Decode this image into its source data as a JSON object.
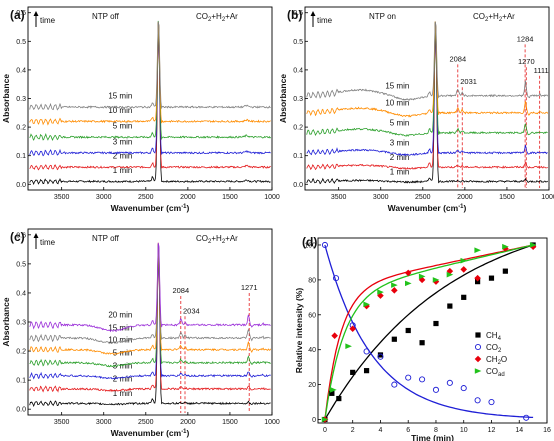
{
  "chart_data": [
    {
      "id": "a",
      "type": "line",
      "panel_label": "(a)",
      "condition": "NTP off",
      "gas": "CO2+H2+Ar",
      "time_arrow": "time",
      "xlabel": "Wavenumber (cm-1)",
      "ylabel": "Absorbance",
      "xlim": [
        3900,
        1000
      ],
      "ylim": [
        -0.02,
        0.62
      ],
      "xticks": [
        3500,
        3000,
        2500,
        2000,
        1500,
        1000
      ],
      "yticks": [
        0.0,
        0.1,
        0.2,
        0.3,
        0.4,
        0.5,
        0.6
      ],
      "series": [
        {
          "name": "1 min",
          "color": "#000000",
          "baseline": 0.01
        },
        {
          "name": "2 min",
          "color": "#e41a1c",
          "baseline": 0.06
        },
        {
          "name": "3 min",
          "color": "#1f1fd6",
          "baseline": 0.11
        },
        {
          "name": "5 min",
          "color": "#2ca02c",
          "baseline": 0.165
        },
        {
          "name": "10 min",
          "color": "#ff8c00",
          "baseline": 0.22
        },
        {
          "name": "15 min",
          "color": "#808080",
          "baseline": 0.27
        }
      ],
      "peak_labels": []
    },
    {
      "id": "b",
      "type": "line",
      "panel_label": "(b)",
      "condition": "NTP on",
      "gas": "CO2+H2+Ar",
      "time_arrow": "time",
      "xlabel": "Wavenumber (cm-1)",
      "ylabel": "Absorbance",
      "xlim": [
        3900,
        1000
      ],
      "ylim": [
        -0.02,
        0.62
      ],
      "xticks": [
        3500,
        3000,
        2500,
        2000,
        1500,
        1000
      ],
      "yticks": [
        0.0,
        0.1,
        0.2,
        0.3,
        0.4,
        0.5,
        0.6
      ],
      "series": [
        {
          "name": "1 min",
          "color": "#000000",
          "baseline": 0.01
        },
        {
          "name": "2 min",
          "color": "#e41a1c",
          "baseline": 0.06
        },
        {
          "name": "3 min",
          "color": "#1f1fd6",
          "baseline": 0.11
        },
        {
          "name": "5 min",
          "color": "#2ca02c",
          "baseline": 0.18
        },
        {
          "name": "10 min",
          "color": "#ff8c00",
          "baseline": 0.25
        },
        {
          "name": "15 min",
          "color": "#808080",
          "baseline": 0.31
        }
      ],
      "peak_labels": [
        "2084",
        "2031",
        "1284",
        "1270",
        "1111"
      ]
    },
    {
      "id": "c",
      "type": "line",
      "panel_label": "(c)",
      "condition": "NTP off",
      "gas": "CO2+H2+Ar",
      "time_arrow": "time",
      "xlabel": "Wavenumber (cm-1)",
      "ylabel": "Absorbance",
      "xlim": [
        3900,
        1000
      ],
      "ylim": [
        -0.02,
        0.62
      ],
      "xticks": [
        3500,
        3000,
        2500,
        2000,
        1500,
        1000
      ],
      "yticks": [
        0.0,
        0.1,
        0.2,
        0.3,
        0.4,
        0.5,
        0.6
      ],
      "series": [
        {
          "name": "1 min",
          "color": "#000000",
          "baseline": 0.02
        },
        {
          "name": "2 min",
          "color": "#e41a1c",
          "baseline": 0.07
        },
        {
          "name": "3 min",
          "color": "#1f1fd6",
          "baseline": 0.115
        },
        {
          "name": "5 min",
          "color": "#2ca02c",
          "baseline": 0.16
        },
        {
          "name": "10 min",
          "color": "#ff8c00",
          "baseline": 0.205
        },
        {
          "name": "15 min",
          "color": "#808080",
          "baseline": 0.245
        },
        {
          "name": "20 min",
          "color": "#9b30d9",
          "baseline": 0.29
        }
      ],
      "peak_labels": [
        "2084",
        "2034",
        "1271"
      ]
    },
    {
      "id": "d",
      "type": "scatter",
      "panel_label": "(d)",
      "xlabel": "Time (min)",
      "ylabel": "Relative intensity (%)",
      "xlim": [
        -0.5,
        16
      ],
      "ylim": [
        -2,
        104
      ],
      "xticks": [
        0,
        2,
        4,
        6,
        8,
        10,
        12,
        14,
        16
      ],
      "yticks": [
        0,
        20,
        40,
        60,
        80,
        100
      ],
      "legend_position": "right",
      "series": [
        {
          "name": "CH4",
          "color": "#000000",
          "marker": "square",
          "x": [
            0,
            0.5,
            1,
            2,
            3,
            4,
            5,
            6,
            7,
            8,
            9,
            10,
            11,
            12,
            13,
            15
          ],
          "y": [
            0,
            15,
            12,
            27,
            28,
            37,
            46,
            51,
            44,
            55,
            65,
            70,
            79,
            81,
            85,
            100
          ]
        },
        {
          "name": "CO2",
          "color": "#1f1fd6",
          "marker": "circle",
          "x": [
            0,
            0.8,
            2,
            3,
            4,
            5,
            6,
            7,
            8,
            9,
            10,
            11,
            12,
            14.5
          ],
          "y": [
            100,
            81,
            54,
            39,
            36,
            20,
            24,
            23,
            17,
            21,
            18,
            11,
            10,
            1
          ]
        },
        {
          "name": "CH2O",
          "color": "#e8000b",
          "marker": "diamond",
          "x": [
            0,
            0.7,
            2,
            3,
            4,
            5,
            6,
            7,
            8,
            9,
            10,
            11,
            13,
            15
          ],
          "y": [
            0,
            48,
            52,
            65,
            71,
            74,
            84,
            80,
            79,
            85,
            86,
            81,
            98,
            99
          ]
        },
        {
          "name": "COad",
          "color": "#22c21b",
          "marker": "triangle",
          "x": [
            0,
            0.6,
            1.7,
            3,
            4,
            5,
            6,
            7,
            8,
            9,
            10,
            11,
            13,
            15
          ],
          "y": [
            0,
            17,
            42,
            66,
            73,
            77,
            78,
            82,
            80,
            83,
            91,
            97,
            99,
            100
          ]
        }
      ]
    }
  ]
}
